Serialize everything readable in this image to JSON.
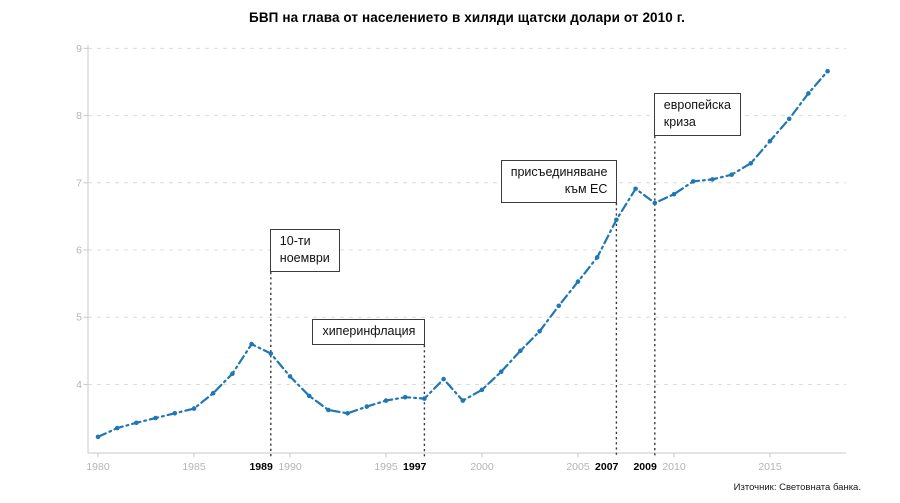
{
  "title": "БВП на глава от населението в хиляди щатски долари от 2010 г.",
  "source": "Източник: Световната банка.",
  "colors": {
    "line": "#1f77b4",
    "grid": "#dcdcdc",
    "spine": "#c9c9c9",
    "tick_label_gray": "#b5b5b5",
    "tick_label_bold": "#000000",
    "annotation_line": "#3a3a3a",
    "annotation_border": "#3c3c3c",
    "background": "#ffffff"
  },
  "chart_data": {
    "type": "line",
    "title": "БВП на глава от населението в хиляди щатски долари от 2010 г.",
    "xlabel": "",
    "ylabel": "",
    "x": [
      1980,
      1981,
      1982,
      1983,
      1984,
      1985,
      1986,
      1987,
      1988,
      1989,
      1990,
      1991,
      1992,
      1993,
      1994,
      1995,
      1996,
      1997,
      1998,
      1999,
      2000,
      2001,
      2002,
      2003,
      2004,
      2005,
      2006,
      2007,
      2008,
      2009,
      2010,
      2011,
      2012,
      2013,
      2014,
      2015,
      2016,
      2017,
      2018
    ],
    "series": [
      {
        "name": "БВП на глава от населението (хиляди щатски долари от 2010 г.)",
        "values": [
          3.22,
          3.35,
          3.43,
          3.5,
          3.57,
          3.64,
          3.87,
          4.16,
          4.6,
          4.46,
          4.12,
          3.83,
          3.62,
          3.57,
          3.67,
          3.76,
          3.81,
          3.79,
          4.08,
          3.76,
          3.92,
          4.19,
          4.5,
          4.79,
          5.17,
          5.53,
          5.89,
          6.45,
          6.91,
          6.7,
          6.83,
          7.02,
          7.05,
          7.12,
          7.29,
          7.62,
          7.95,
          8.33,
          8.66
        ]
      }
    ],
    "xlim": [
      1979.5,
      2019.0
    ],
    "ylim": [
      2.98,
      9.05
    ],
    "yticks": [
      4,
      5,
      6,
      7,
      8,
      9
    ],
    "xticks": [
      {
        "year": 1980,
        "bold": false
      },
      {
        "year": 1985,
        "bold": false
      },
      {
        "year": 1989,
        "bold": true
      },
      {
        "year": 1990,
        "bold": false
      },
      {
        "year": 1995,
        "bold": false
      },
      {
        "year": 1997,
        "bold": true
      },
      {
        "year": 2000,
        "bold": false
      },
      {
        "year": 2005,
        "bold": false
      },
      {
        "year": 2007,
        "bold": true
      },
      {
        "year": 2009,
        "bold": true
      },
      {
        "year": 2010,
        "bold": false
      },
      {
        "year": 2015,
        "bold": false
      }
    ],
    "grid": "horizontal dashed",
    "legend": "none",
    "line_style": "dash-dot with point markers",
    "annotations": [
      {
        "id": "november-10",
        "lines": [
          "10-ти",
          "ноември"
        ],
        "year": 1989,
        "attach": "left",
        "text_align": "left"
      },
      {
        "id": "hyperinflation",
        "lines": [
          "хиперинфлация"
        ],
        "year": 1997,
        "attach": "right",
        "text_align": "left"
      },
      {
        "id": "eu-accession",
        "lines": [
          "присъединяване",
          "към ЕС"
        ],
        "year": 2007,
        "attach": "right",
        "text_align": "right"
      },
      {
        "id": "european-crisis",
        "lines": [
          "европейска",
          "криза"
        ],
        "year": 2009,
        "attach": "left",
        "text_align": "left"
      }
    ]
  }
}
